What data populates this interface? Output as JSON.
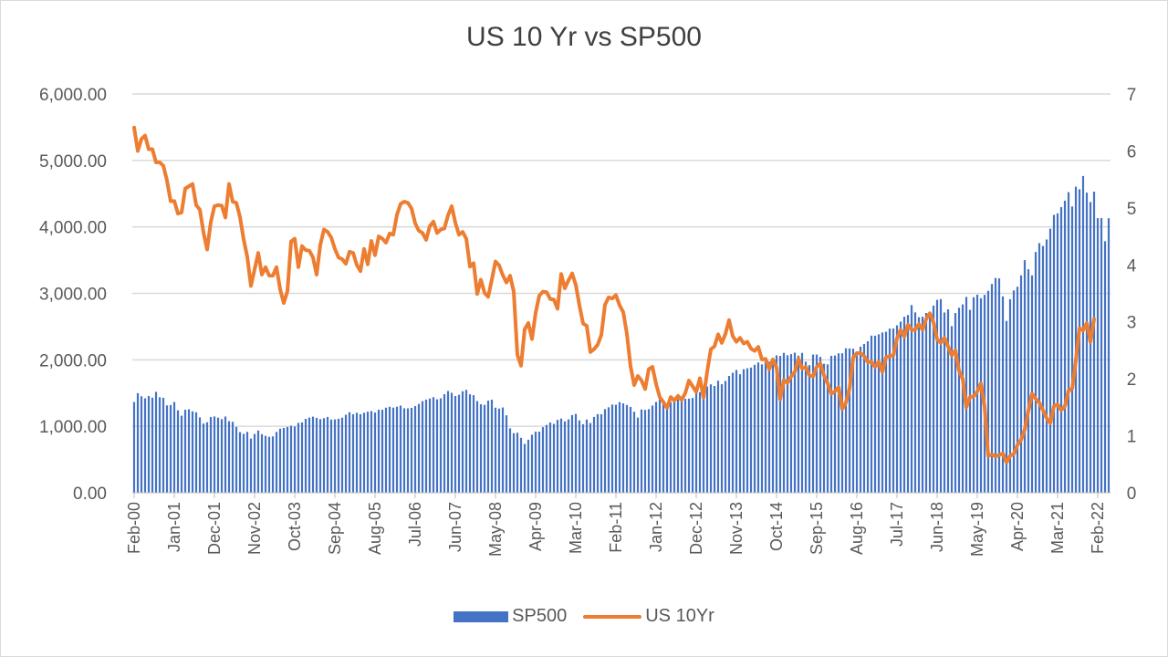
{
  "chart_data": {
    "type": "bar+line",
    "title": "US 10 Yr vs SP500",
    "xlabel": "",
    "ylabel_left": "",
    "ylabel_right": "",
    "ylim_left": [
      0,
      6000
    ],
    "ylim_right": [
      0,
      7
    ],
    "left_ticks": [
      "0.00",
      "1,000.00",
      "2,000.00",
      "3,000.00",
      "4,000.00",
      "5,000.00",
      "6,000.00"
    ],
    "right_ticks": [
      "0",
      "1",
      "2",
      "3",
      "4",
      "5",
      "6",
      "7"
    ],
    "x_tick_labels": [
      "Feb-00",
      "Jan-01",
      "Dec-01",
      "Nov-02",
      "Oct-03",
      "Sep-04",
      "Aug-05",
      "Jul-06",
      "Jun-07",
      "May-08",
      "Apr-09",
      "Mar-10",
      "Feb-11",
      "Jan-12",
      "Dec-12",
      "Nov-13",
      "Oct-14",
      "Sep-15",
      "Aug-16",
      "Jul-17",
      "Jun-18",
      "May-19",
      "Apr-20",
      "Mar-21",
      "Feb-22"
    ],
    "x_tick_interval_months": 11,
    "start": "Feb-00",
    "frequency": "monthly",
    "grid": true,
    "legend_position": "bottom",
    "series": [
      {
        "name": "SP500",
        "type": "bar",
        "axis": "left",
        "color": "#4472c4",
        "values": [
          1366,
          1499,
          1452,
          1421,
          1455,
          1431,
          1518,
          1437,
          1429,
          1315,
          1320,
          1366,
          1240,
          1160,
          1249,
          1256,
          1224,
          1211,
          1134,
          1041,
          1060,
          1139,
          1148,
          1130,
          1107,
          1147,
          1077,
          1067,
          990,
          912,
          886,
          916,
          815,
          885,
          936,
          880,
          856,
          841,
          848,
          916,
          964,
          975,
          990,
          1008,
          996,
          1051,
          1058,
          1112,
          1131,
          1145,
          1127,
          1107,
          1121,
          1141,
          1101,
          1104,
          1114,
          1130,
          1174,
          1212,
          1181,
          1204,
          1181,
          1204,
          1220,
          1229,
          1207,
          1249,
          1248,
          1280,
          1294,
          1281,
          1295,
          1311,
          1271,
          1270,
          1277,
          1304,
          1336,
          1378,
          1401,
          1418,
          1438,
          1406,
          1420,
          1482,
          1531,
          1504,
          1455,
          1474,
          1527,
          1549,
          1481,
          1468,
          1379,
          1331,
          1322,
          1386,
          1400,
          1280,
          1267,
          1283,
          1165,
          969,
          896,
          903,
          826,
          735,
          798,
          873,
          919,
          919,
          987,
          1021,
          1057,
          1036,
          1096,
          1116,
          1074,
          1104,
          1169,
          1187,
          1089,
          1031,
          1101,
          1049,
          1141,
          1183,
          1181,
          1258,
          1286,
          1327,
          1325,
          1364,
          1345,
          1321,
          1292,
          1219,
          1131,
          1253,
          1247,
          1258,
          1312,
          1366,
          1408,
          1398,
          1310,
          1362,
          1379,
          1406,
          1441,
          1412,
          1416,
          1426,
          1498,
          1514,
          1569,
          1598,
          1631,
          1606,
          1686,
          1633,
          1682,
          1757,
          1806,
          1848,
          1783,
          1859,
          1872,
          1884,
          1924,
          1960,
          1931,
          2003,
          1972,
          2018,
          2067,
          2059,
          2105,
          2068,
          2086,
          2108,
          2063,
          2104,
          1972,
          1920,
          2079,
          2080,
          2044,
          1940,
          1932,
          2060,
          2065,
          2097,
          2099,
          2174,
          2171,
          2168,
          2126,
          2198,
          2239,
          2279,
          2364,
          2363,
          2384,
          2412,
          2423,
          2470,
          2472,
          2519,
          2575,
          2648,
          2674,
          2824,
          2714,
          2641,
          2648,
          2705,
          2718,
          2816,
          2902,
          2914,
          2712,
          2760,
          2507,
          2704,
          2784,
          2834,
          2946,
          2752,
          2942,
          2980,
          2926,
          2977,
          3038,
          3141,
          3231,
          3226,
          2954,
          2585,
          2912,
          3044,
          3100,
          3271,
          3500,
          3363,
          3270,
          3622,
          3756,
          3714,
          3811,
          3973,
          4181,
          4204,
          4298,
          4395,
          4523,
          4308,
          4605,
          4567,
          4766,
          4516,
          4374,
          4530,
          4132,
          4132,
          3785,
          4130
        ],
        "note": "Values approximate monthly closes read from chart"
      },
      {
        "name": "US 10Yr",
        "type": "line",
        "axis": "right",
        "color": "#ed7d31",
        "values": [
          6.41,
          6.0,
          6.21,
          6.27,
          6.03,
          6.03,
          5.8,
          5.8,
          5.74,
          5.48,
          5.12,
          5.12,
          4.9,
          4.92,
          5.34,
          5.38,
          5.42,
          5.05,
          4.97,
          4.57,
          4.27,
          4.75,
          5.03,
          5.05,
          5.04,
          4.83,
          5.42,
          5.11,
          5.09,
          4.84,
          4.45,
          4.14,
          3.63,
          3.92,
          4.21,
          3.83,
          3.96,
          3.81,
          3.81,
          3.96,
          3.57,
          3.33,
          3.54,
          4.41,
          4.46,
          3.96,
          4.33,
          4.26,
          4.25,
          4.13,
          3.83,
          4.35,
          4.62,
          4.58,
          4.48,
          4.28,
          4.13,
          4.1,
          4.02,
          4.23,
          4.21,
          4.0,
          3.89,
          4.28,
          4.01,
          4.42,
          4.17,
          4.5,
          4.46,
          4.39,
          4.55,
          4.53,
          4.88,
          5.07,
          5.11,
          5.09,
          4.99,
          4.73,
          4.6,
          4.56,
          4.44,
          4.68,
          4.76,
          4.56,
          4.62,
          4.64,
          4.87,
          5.03,
          4.74,
          4.53,
          4.58,
          4.46,
          3.97,
          4.03,
          3.49,
          3.74,
          3.51,
          3.44,
          3.74,
          4.06,
          3.99,
          3.82,
          3.69,
          3.81,
          3.53,
          2.42,
          2.23,
          2.87,
          2.98,
          2.7,
          3.16,
          3.46,
          3.53,
          3.52,
          3.4,
          3.39,
          3.23,
          3.84,
          3.59,
          3.73,
          3.85,
          3.65,
          3.29,
          2.97,
          2.93,
          2.47,
          2.52,
          2.6,
          2.77,
          3.3,
          3.43,
          3.41,
          3.47,
          3.29,
          3.17,
          2.79,
          2.22,
          1.89,
          2.05,
          1.97,
          1.82,
          2.17,
          2.21,
          1.91,
          1.68,
          1.59,
          1.49,
          1.68,
          1.62,
          1.7,
          1.63,
          1.75,
          1.97,
          1.87,
          1.77,
          2.01,
          1.67,
          2.13,
          2.52,
          2.57,
          2.78,
          2.63,
          2.79,
          3.03,
          2.75,
          2.65,
          2.72,
          2.62,
          2.65,
          2.53,
          2.49,
          2.56,
          2.34,
          2.35,
          2.17,
          2.34,
          2.2,
          1.64,
          1.98,
          1.93,
          2.04,
          2.12,
          2.35,
          2.18,
          2.21,
          2.06,
          2.04,
          2.21,
          2.27,
          2.06,
          1.92,
          1.74,
          1.78,
          1.85,
          1.47,
          1.58,
          1.83,
          2.37,
          2.45,
          2.45,
          2.4,
          2.29,
          2.3,
          2.21,
          2.3,
          2.12,
          2.38,
          2.4,
          2.41,
          2.71,
          2.86,
          2.74,
          2.95,
          2.86,
          2.86,
          2.96,
          2.86,
          3.05,
          3.15,
          2.99,
          2.69,
          2.63,
          2.72,
          2.57,
          2.41,
          2.5,
          2.14,
          2.0,
          1.5,
          1.68,
          1.69,
          1.78,
          1.92,
          1.51,
          0.65,
          0.67,
          0.64,
          0.66,
          0.69,
          0.53,
          0.65,
          0.68,
          0.84,
          0.93,
          1.11,
          1.44,
          1.74,
          1.65,
          1.58,
          1.45,
          1.31,
          1.22,
          1.52,
          1.55,
          1.45,
          1.52,
          1.79,
          1.83,
          2.32,
          2.89,
          2.85,
          2.98,
          2.65,
          3.05
        ]
      }
    ]
  },
  "legend": {
    "items": [
      {
        "label": "SP500",
        "color": "#4472c4",
        "kind": "bar"
      },
      {
        "label": "US 10Yr",
        "color": "#ed7d31",
        "kind": "line"
      }
    ]
  }
}
